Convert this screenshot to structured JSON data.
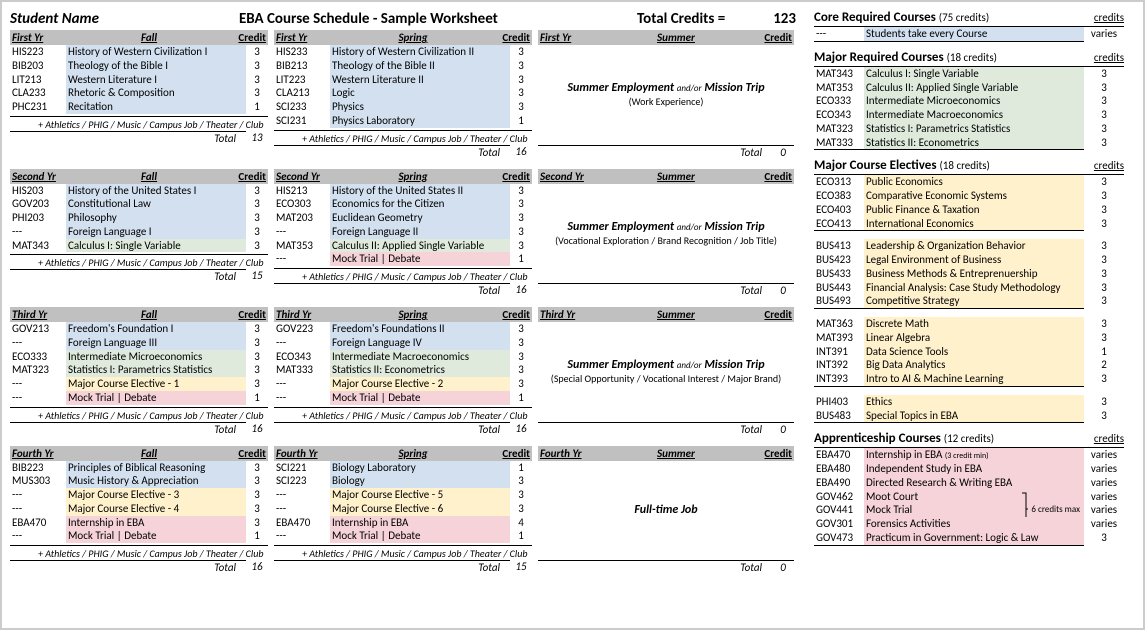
{
  "colors": {
    "blue": "#d3e0ef",
    "green": "#dfeadd",
    "yellow": "#fff1cc",
    "pink": "#f5d3d8",
    "headerGray": "#c0c0c0"
  },
  "header": {
    "studentNameLabel": "Student Name",
    "title": "EBA Course Schedule - Sample Worksheet",
    "totalLabel": "Total Credits  =",
    "totalValue": "123"
  },
  "labels": {
    "credit": "Credit",
    "total": "Total",
    "extras": "+ Athletics / PHIG / Music / Campus Job / Theater / Club"
  },
  "years": [
    {
      "yr": "First Yr",
      "fall": {
        "label": "Fall",
        "rows": [
          {
            "code": "HIS223",
            "name": "History of Western Civilization I",
            "cr": "3",
            "bg": "blue"
          },
          {
            "code": "BIB203",
            "name": "Theology of the Bible I",
            "cr": "3",
            "bg": "blue"
          },
          {
            "code": "LIT213",
            "name": "Western Literature I",
            "cr": "3",
            "bg": "blue"
          },
          {
            "code": "CLA233",
            "name": "Rhetoric & Composition",
            "cr": "3",
            "bg": "blue"
          },
          {
            "code": "PHC231",
            "name": "Recitation",
            "cr": "1",
            "bg": "blue"
          }
        ],
        "total": "13"
      },
      "spring": {
        "label": "Spring",
        "rows": [
          {
            "code": "HIS233",
            "name": "History of Western Civilization II",
            "cr": "3",
            "bg": "blue"
          },
          {
            "code": "BIB213",
            "name": "Theology of the Bible II",
            "cr": "3",
            "bg": "blue"
          },
          {
            "code": "LIT223",
            "name": "Western Literature II",
            "cr": "3",
            "bg": "blue"
          },
          {
            "code": "CLA213",
            "name": "Logic",
            "cr": "3",
            "bg": "blue"
          },
          {
            "code": "SCI233",
            "name": "Physics",
            "cr": "3",
            "bg": "blue"
          },
          {
            "code": "SCI231",
            "name": "Physics Laboratory",
            "cr": "1",
            "bg": "blue"
          }
        ],
        "total": "16"
      },
      "summer": {
        "label": "Summer",
        "main1": "Summer Employment",
        "andor": "and/or",
        "main2": "Mission Trip",
        "sub": "(Work Experience)",
        "total": "0"
      }
    },
    {
      "yr": "Second Yr",
      "fall": {
        "label": "Fall",
        "rows": [
          {
            "code": "HIS203",
            "name": "History of the United States I",
            "cr": "3",
            "bg": "blue"
          },
          {
            "code": "GOV203",
            "name": "Constitutional Law",
            "cr": "3",
            "bg": "blue"
          },
          {
            "code": "PHI203",
            "name": "Philosophy",
            "cr": "3",
            "bg": "blue"
          },
          {
            "code": "---",
            "name": "Foreign Language I",
            "cr": "3",
            "bg": "blue"
          },
          {
            "code": "MAT343",
            "name": "Calculus I:  Single Variable",
            "cr": "3",
            "bg": "green"
          }
        ],
        "total": "15"
      },
      "spring": {
        "label": "Spring",
        "rows": [
          {
            "code": "HIS213",
            "name": "History of the United States II",
            "cr": "3",
            "bg": "blue"
          },
          {
            "code": "ECO303",
            "name": "Economics for the Citizen",
            "cr": "3",
            "bg": "blue"
          },
          {
            "code": "MAT203",
            "name": "Euclidean Geometry",
            "cr": "3",
            "bg": "blue"
          },
          {
            "code": "---",
            "name": "Foreign Language II",
            "cr": "3",
            "bg": "blue"
          },
          {
            "code": "MAT353",
            "name": "Calculus II: Applied Single Variable",
            "cr": "3",
            "bg": "green"
          },
          {
            "code": "---",
            "name": "Mock Trial | Debate",
            "cr": "1",
            "bg": "pink"
          }
        ],
        "total": "16"
      },
      "summer": {
        "label": "Summer",
        "main1": "Summer Employment",
        "andor": "and/or",
        "main2": "Mission Trip",
        "sub": "(Vocational Exploration / Brand Recognition / Job Title)",
        "total": "0"
      }
    },
    {
      "yr": "Third Yr",
      "fall": {
        "label": "Fall",
        "rows": [
          {
            "code": "GOV213",
            "name": "Freedom's Foundation I",
            "cr": "3",
            "bg": "blue"
          },
          {
            "code": "---",
            "name": "Foreign Language III",
            "cr": "3",
            "bg": "blue"
          },
          {
            "code": "ECO333",
            "name": "Intermediate Microeconomics",
            "cr": "3",
            "bg": "green"
          },
          {
            "code": "MAT323",
            "name": "Statistics I:  Parametrics Statistics",
            "cr": "3",
            "bg": "green"
          },
          {
            "code": "---",
            "name": "Major Course Elective - 1",
            "cr": "3",
            "bg": "yellow"
          },
          {
            "code": "---",
            "name": "Mock Trial | Debate",
            "cr": "1",
            "bg": "pink"
          }
        ],
        "total": "16"
      },
      "spring": {
        "label": "Spring",
        "rows": [
          {
            "code": "GOV223",
            "name": "Freedom's Foundations II",
            "cr": "3",
            "bg": "blue"
          },
          {
            "code": "---",
            "name": "Foreign Language IV",
            "cr": "3",
            "bg": "blue"
          },
          {
            "code": "ECO343",
            "name": "Intermediate Macroeconomics",
            "cr": "3",
            "bg": "green"
          },
          {
            "code": "MAT333",
            "name": "Statistics II:  Econometrics",
            "cr": "3",
            "bg": "green"
          },
          {
            "code": "---",
            "name": "Major Course Elective - 2",
            "cr": "3",
            "bg": "yellow"
          },
          {
            "code": "---",
            "name": "Mock Trial | Debate",
            "cr": "1",
            "bg": "pink"
          }
        ],
        "total": "16"
      },
      "summer": {
        "label": "Summer",
        "main1": "Summer Employment",
        "andor": "and/or",
        "main2": "Mission Trip",
        "sub": "(Special Opportunity / Vocational Interest / Major Brand)",
        "total": "0"
      }
    },
    {
      "yr": "Fourth Yr",
      "fall": {
        "label": "Fall",
        "rows": [
          {
            "code": "BIB223",
            "name": "Principles of Biblical Reasoning",
            "cr": "3",
            "bg": "blue"
          },
          {
            "code": "MUS303",
            "name": "Music History & Appreciation",
            "cr": "3",
            "bg": "blue"
          },
          {
            "code": "---",
            "name": "Major Course Elective - 3",
            "cr": "3",
            "bg": "yellow"
          },
          {
            "code": "---",
            "name": "Major Course Elective - 4",
            "cr": "3",
            "bg": "yellow"
          },
          {
            "code": "EBA470",
            "name": "Internship in EBA",
            "cr": "3",
            "bg": "pink"
          },
          {
            "code": "---",
            "name": "Mock Trial | Debate",
            "cr": "1",
            "bg": "pink"
          }
        ],
        "total": "16"
      },
      "spring": {
        "label": "Spring",
        "rows": [
          {
            "code": "SCI221",
            "name": "Biology Laboratory",
            "cr": "1",
            "bg": "blue"
          },
          {
            "code": "SCI223",
            "name": "Biology",
            "cr": "3",
            "bg": "blue"
          },
          {
            "code": "---",
            "name": "Major Course Elective - 5",
            "cr": "3",
            "bg": "yellow"
          },
          {
            "code": "---",
            "name": "Major Course Elective - 6",
            "cr": "3",
            "bg": "yellow"
          },
          {
            "code": "EBA470",
            "name": "Internship in EBA",
            "cr": "4",
            "bg": "pink"
          },
          {
            "code": "---",
            "name": "Mock Trial | Debate",
            "cr": "1",
            "bg": "pink"
          }
        ],
        "total": "15"
      },
      "summer": {
        "label": "Summer",
        "main1": "Full-time Job",
        "andor": "",
        "main2": "",
        "sub": "",
        "total": "0"
      }
    }
  ],
  "right": [
    {
      "title": "Core Required Courses",
      "credits": "(75 credits)",
      "crhead": "credits",
      "subs": [
        {
          "rows": [
            {
              "code": "---",
              "name": "Students take every Course",
              "cr": "varies",
              "bg": "blue"
            }
          ]
        }
      ]
    },
    {
      "title": "Major Required Courses",
      "credits": "(18 credits)",
      "crhead": "credits",
      "subs": [
        {
          "rows": [
            {
              "code": "MAT343",
              "name": "Calculus I:  Single Variable",
              "cr": "3",
              "bg": "green"
            },
            {
              "code": "MAT353",
              "name": "Calculus II: Applied Single Variable",
              "cr": "3",
              "bg": "green"
            },
            {
              "code": "ECO333",
              "name": "Intermediate Microeconomics",
              "cr": "3",
              "bg": "green"
            },
            {
              "code": "ECO343",
              "name": "Intermediate Macroeconomics",
              "cr": "3",
              "bg": "green"
            },
            {
              "code": "MAT323",
              "name": "Statistics I:  Parametrics Statistics",
              "cr": "3",
              "bg": "green"
            },
            {
              "code": "MAT333",
              "name": "Statistics II:  Econometrics",
              "cr": "3",
              "bg": "green"
            }
          ]
        }
      ]
    },
    {
      "title": "Major Course Electives",
      "credits": "(18 credits)",
      "crhead": "credits",
      "subs": [
        {
          "rows": [
            {
              "code": "ECO313",
              "name": "Public Economics",
              "cr": "3",
              "bg": "yellow"
            },
            {
              "code": "ECO383",
              "name": "Comparative Economic Systems",
              "cr": "3",
              "bg": "yellow"
            },
            {
              "code": "ECO403",
              "name": "Public Finance & Taxation",
              "cr": "3",
              "bg": "yellow"
            },
            {
              "code": "ECO413",
              "name": "International Economics",
              "cr": "3",
              "bg": "yellow"
            }
          ]
        },
        {
          "rows": [
            {
              "code": "BUS413",
              "name": "Leadership & Organization Behavior",
              "cr": "3",
              "bg": "yellow"
            },
            {
              "code": "BUS423",
              "name": "Legal Environment of Business",
              "cr": "3",
              "bg": "yellow"
            },
            {
              "code": "BUS433",
              "name": "Business Methods & Entreprenuership",
              "cr": "3",
              "bg": "yellow"
            },
            {
              "code": "BUS443",
              "name": "Financial Analysis: Case Study Methodology",
              "cr": "3",
              "bg": "yellow"
            },
            {
              "code": "BUS493",
              "name": "Competitive Strategy",
              "cr": "3",
              "bg": "yellow"
            }
          ]
        },
        {
          "rows": [
            {
              "code": "MAT363",
              "name": "Discrete Math",
              "cr": "3",
              "bg": "yellow"
            },
            {
              "code": "MAT393",
              "name": "Linear Algebra",
              "cr": "3",
              "bg": "yellow"
            },
            {
              "code": "INT391",
              "name": "Data Science Tools",
              "cr": "1",
              "bg": "yellow"
            },
            {
              "code": "INT392",
              "name": "Big Data Analytics",
              "cr": "2",
              "bg": "yellow"
            },
            {
              "code": "INT393",
              "name": "Intro to AI & Machine Learning",
              "cr": "3",
              "bg": "yellow"
            }
          ]
        },
        {
          "rows": [
            {
              "code": "PHI403",
              "name": "Ethics",
              "cr": "3",
              "bg": "yellow"
            },
            {
              "code": "BUS483",
              "name": "Special Topics in EBA",
              "cr": "3",
              "bg": "yellow"
            }
          ]
        }
      ]
    },
    {
      "title": "Apprenticeship Courses",
      "credits": "(12 credits)",
      "crhead": "credits",
      "subs": [
        {
          "rows": [
            {
              "code": "EBA470",
              "name": "Internship in EBA",
              "note": "(3 credit min)",
              "cr": "varies",
              "bg": "pink"
            },
            {
              "code": "EBA480",
              "name": "Independent Study in EBA",
              "cr": "varies",
              "bg": "pink"
            },
            {
              "code": "EBA490",
              "name": "Directed Research & Writing EBA",
              "cr": "varies",
              "bg": "pink"
            },
            {
              "code": "GOV462",
              "name": "Moot Court",
              "cr": "varies",
              "bg": "pink"
            },
            {
              "code": "GOV441",
              "name": "Mock Trial",
              "cr": "varies",
              "bg": "pink",
              "bracket": "6 credits max"
            },
            {
              "code": "GOV301",
              "name": "Forensics Activities",
              "cr": "varies",
              "bg": "pink"
            },
            {
              "code": "GOV473",
              "name": "Practicum in Government: Logic & Law",
              "cr": "3",
              "bg": "pink"
            }
          ]
        }
      ]
    }
  ]
}
